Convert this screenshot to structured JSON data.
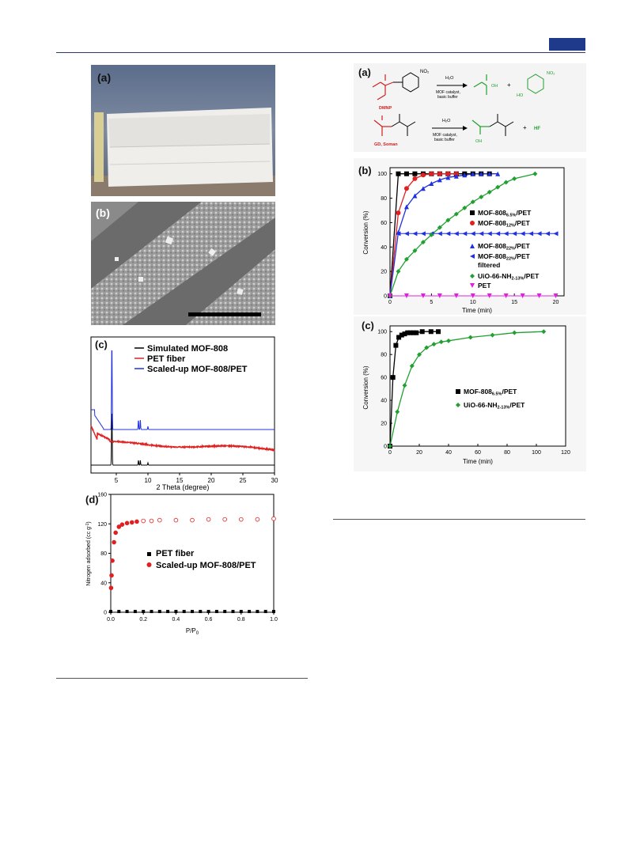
{
  "page": {
    "accent_color": "#1f3a8a"
  },
  "fig_left": {
    "a": {
      "label": "(a)"
    },
    "b": {
      "label": "(b)"
    },
    "c": {
      "label": "(c)",
      "legend": [
        "Simulated MOF-808",
        "PET fiber",
        "Scaled-up MOF-808/PET"
      ],
      "xlabel": "2 Theta (degree)",
      "xticks": [
        "5",
        "10",
        "15",
        "20",
        "25",
        "30"
      ]
    },
    "d": {
      "label": "(d)",
      "legend": [
        "PET fiber",
        "Scaled-up MOF-808/PET"
      ],
      "xlabel": "P/P",
      "xlabel_sub": "0",
      "ylabel": "Nitrogen adsorbed (cc g",
      "ylabel_sup": "-1",
      "ylabel_end": ")",
      "xticks": [
        "0.0",
        "0.2",
        "0.4",
        "0.6",
        "0.8",
        "1.0"
      ],
      "yticks": [
        "0",
        "40",
        "80",
        "120",
        "160"
      ]
    }
  },
  "fig_right": {
    "a": {
      "label": "(a)",
      "r1_reagent": "H₂O",
      "r1_cond1": "MOF catalyst,",
      "r1_cond2": "basic buffer",
      "r1_name": "DMNP",
      "r2_reagent": "H₂O",
      "r2_cond1": "MOF catalyst,",
      "r2_cond2": "basic buffer",
      "r2_name": "GD, Soman",
      "plus": "+",
      "hf": "HF",
      "no2": "NO₂",
      "ho": "HO",
      "oh": "OH"
    },
    "b": {
      "label": "(b)",
      "ylabel": "Conversion (%)",
      "xlabel": "Time (min)",
      "xticks": [
        "0",
        "5",
        "10",
        "15",
        "20"
      ],
      "yticks": [
        "0",
        "20",
        "40",
        "60",
        "80",
        "100"
      ],
      "legend": [
        {
          "name": "MOF-808",
          "sub": "6.5%",
          "tail": "/PET"
        },
        {
          "name": "MOF-808",
          "sub": "12%",
          "tail": "/PET"
        },
        {
          "name": "MOF-808",
          "sub": "22%",
          "tail": "/PET"
        },
        {
          "name": "MOF-808",
          "sub": "22%",
          "tail": "/PET"
        },
        {
          "name": "filtered",
          "sub": "",
          "tail": ""
        },
        {
          "name": "UiO-66-NH",
          "sub": "2-13%",
          "tail": "/PET"
        },
        {
          "name": "PET",
          "sub": "",
          "tail": ""
        }
      ]
    },
    "c": {
      "label": "(c)",
      "ylabel": "Conversion (%)",
      "xlabel": "Time (min)",
      "xticks": [
        "0",
        "20",
        "40",
        "60",
        "80",
        "100",
        "120"
      ],
      "yticks": [
        "0",
        "20",
        "40",
        "60",
        "80",
        "100"
      ],
      "legend": [
        {
          "name": "MOF-808",
          "sub": "6.5%",
          "tail": "/PET"
        },
        {
          "name": "UiO-66-NH",
          "sub": "2-13%",
          "tail": "/PET"
        }
      ]
    }
  },
  "chart_data": [
    {
      "id": "xrd",
      "type": "line",
      "xlabel": "2 Theta (degree)",
      "ylabel": "",
      "xlim": [
        1,
        30
      ],
      "series": [
        {
          "name": "Simulated MOF-808",
          "color": "#000000"
        },
        {
          "name": "PET fiber",
          "color": "#e02020"
        },
        {
          "name": "Scaled-up MOF-808/PET",
          "color": "#2030e0"
        }
      ]
    },
    {
      "id": "isotherm",
      "type": "scatter",
      "xlabel": "P/P0",
      "ylabel": "Nitrogen adsorbed (cc g-1)",
      "xlim": [
        0,
        1.0
      ],
      "ylim": [
        0,
        160
      ],
      "series": [
        {
          "name": "PET fiber",
          "color": "#000000",
          "x": [
            0,
            0.05,
            0.1,
            0.15,
            0.2,
            0.25,
            0.3,
            0.35,
            0.4,
            0.45,
            0.5,
            0.55,
            0.6,
            0.65,
            0.7,
            0.75,
            0.8,
            0.85,
            0.9,
            0.95,
            1.0
          ],
          "y": [
            1,
            1,
            1,
            1,
            1,
            1,
            1,
            1,
            1,
            1,
            1,
            1,
            1,
            1,
            1,
            1,
            1,
            1,
            1,
            1,
            1
          ]
        },
        {
          "name": "Scaled-up MOF-808/PET",
          "color": "#e02020",
          "x": [
            0.002,
            0.005,
            0.01,
            0.02,
            0.03,
            0.05,
            0.07,
            0.1,
            0.13,
            0.16,
            0.2,
            0.25,
            0.3,
            0.4,
            0.5,
            0.6,
            0.7,
            0.8,
            0.9,
            1.0
          ],
          "y": [
            33,
            50,
            70,
            95,
            108,
            116,
            119,
            121,
            122,
            123,
            124,
            124,
            125,
            125,
            125,
            126,
            126,
            126,
            126,
            127
          ]
        }
      ]
    },
    {
      "id": "conv_b",
      "type": "scatter",
      "xlabel": "Time (min)",
      "ylabel": "Conversion (%)",
      "xlim": [
        0,
        21
      ],
      "ylim": [
        0,
        105
      ],
      "series": [
        {
          "name": "MOF-808 6.5%/PET",
          "color": "#000000",
          "marker": "square",
          "x": [
            0,
            1,
            2,
            3,
            4,
            5,
            6,
            7,
            8,
            9,
            10,
            11,
            12
          ],
          "y": [
            0,
            100,
            100,
            100,
            100,
            100,
            100,
            100,
            100,
            100,
            100,
            100,
            100
          ]
        },
        {
          "name": "MOF-808 12%/PET",
          "color": "#e02020",
          "marker": "circle",
          "x": [
            0,
            1,
            2,
            3,
            4,
            5,
            6,
            7,
            8
          ],
          "y": [
            0,
            68,
            88,
            96,
            99,
            100,
            100,
            100,
            100
          ]
        },
        {
          "name": "MOF-808 22%/PET",
          "color": "#2030e0",
          "marker": "triangle",
          "x": [
            0,
            1,
            2,
            3,
            4,
            5,
            6,
            7,
            8,
            9,
            10,
            11,
            12,
            13
          ],
          "y": [
            0,
            52,
            73,
            82,
            88,
            92,
            95,
            97,
            98,
            99,
            100,
            100,
            100,
            100
          ]
        },
        {
          "name": "MOF-808 22%/PET filtered",
          "color": "#2030e0",
          "marker": "ltriangle",
          "x": [
            1,
            2,
            3,
            4,
            5,
            6,
            7,
            8,
            9,
            10,
            11,
            12,
            13,
            14,
            15,
            16,
            17,
            18,
            19,
            20
          ],
          "y": [
            51,
            51,
            51,
            51,
            51,
            51,
            51,
            51,
            51,
            51,
            51,
            51,
            51,
            51,
            51,
            51,
            51,
            51,
            51,
            51
          ]
        },
        {
          "name": "UiO-66-NH2-13%/PET",
          "color": "#20a030",
          "marker": "diamond",
          "x": [
            0,
            1,
            2,
            3,
            4,
            5,
            6,
            7,
            8,
            9,
            10,
            11,
            12,
            13,
            14,
            15,
            17.5
          ],
          "y": [
            0,
            20,
            30,
            37,
            44,
            50,
            56,
            62,
            67,
            72,
            77,
            81,
            85,
            89,
            93,
            96,
            100
          ]
        },
        {
          "name": "PET",
          "color": "#e020e0",
          "marker": "dtriangle",
          "x": [
            0,
            2,
            4,
            6,
            8,
            10,
            12,
            14,
            16,
            18,
            20
          ],
          "y": [
            0,
            0,
            0,
            0,
            0,
            0,
            0,
            0,
            0,
            0,
            0
          ]
        }
      ]
    },
    {
      "id": "conv_c",
      "type": "scatter",
      "xlabel": "Time (min)",
      "ylabel": "Conversion (%)",
      "xlim": [
        0,
        120
      ],
      "ylim": [
        0,
        105
      ],
      "series": [
        {
          "name": "MOF-808 6.5%/PET",
          "color": "#000000",
          "marker": "square",
          "x": [
            0,
            2,
            4,
            6,
            8,
            10,
            12,
            14,
            16,
            18,
            22,
            28,
            33
          ],
          "y": [
            0,
            60,
            88,
            95,
            97,
            98,
            99,
            99,
            99,
            99,
            100,
            100,
            100
          ]
        },
        {
          "name": "UiO-66-NH2-13%/PET",
          "color": "#20a030",
          "marker": "diamond",
          "x": [
            0,
            5,
            10,
            15,
            20,
            25,
            30,
            35,
            40,
            55,
            70,
            85,
            105
          ],
          "y": [
            0,
            30,
            53,
            70,
            80,
            86,
            89,
            91,
            92,
            95,
            97,
            99,
            100
          ]
        }
      ]
    }
  ]
}
